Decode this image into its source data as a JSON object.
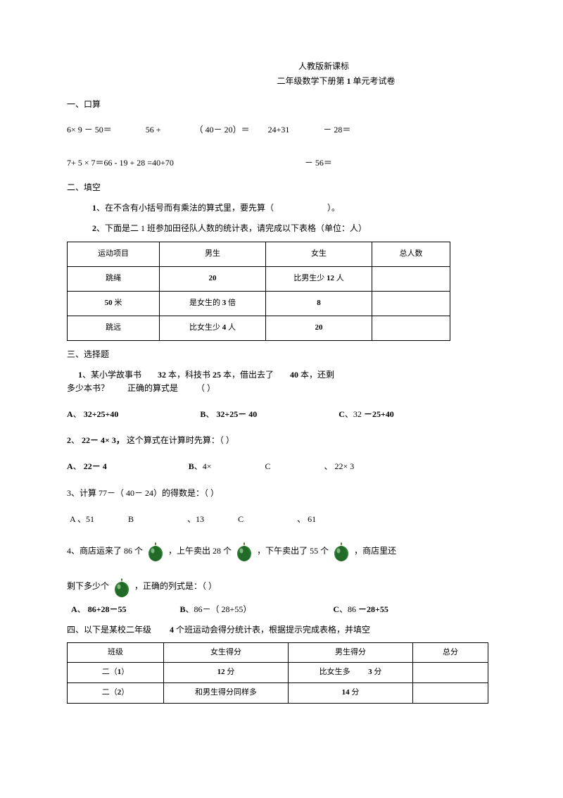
{
  "header": {
    "line1": "人教版新课标",
    "line2_a": "二年级数学下册第",
    "line2_b": "1",
    "line2_c": "单元考试卷"
  },
  "s1": {
    "head": "一、口算",
    "r1_a": "6× 9 － 50＝",
    "r1_b": "56 +",
    "r1_c": "（ 40－ 20）＝",
    "r1_d": "24+31",
    "r1_e": "－ 28＝",
    "r2_a": "7+ 5 × 7＝66 ‑ 19 + 28 =40+70",
    "r2_b": "－ 56＝"
  },
  "s2": {
    "head": "二、填空",
    "q1_a": "1",
    "q1_b": "、在不含有小括号而有乘法的算式里，要先算（",
    "q1_c": "）。",
    "q2_a": "2",
    "q2_b": "、下面是二",
    "q2_c": "1 班参加田径队人数的统计表，请完成以下表格（单位：人）",
    "table": {
      "h": [
        "运动项目",
        "男生",
        "女生",
        "总人数"
      ],
      "r1": {
        "c1": "跳绳",
        "c2": "20",
        "c3_a": "比男生少",
        "c3_b": "12",
        "c3_c": "人",
        "c4": ""
      },
      "r2": {
        "c1_a": "50",
        "c1_b": "米",
        "c2_a": "是女生的",
        "c2_b": "3",
        "c2_c": "倍",
        "c3": "8",
        "c4": ""
      },
      "r3": {
        "c1": "跳远",
        "c2_a": "比女生少",
        "c2_b": "4",
        "c2_c": "人",
        "c3": "20",
        "c4": ""
      }
    }
  },
  "s3": {
    "head": "三、选择题",
    "q1_a": "1",
    "q1_b": "、某小学故事书",
    "q1_c": "32",
    "q1_d": "本，科技书",
    "q1_e": "25",
    "q1_f": "本，借出去了",
    "q1_g": "40",
    "q1_h": "本，还剩",
    "q1_i": "多少本书？",
    "q1_j": "正确的算式是",
    "q1_k": "（  ）",
    "q1_opt_a1": "A",
    "q1_opt_a2": "、",
    "q1_opt_a3": "32+25+40",
    "q1_opt_b1": "B",
    "q1_opt_b2": "、",
    "q1_opt_b3": "32+25－ 40",
    "q1_opt_c1": "C",
    "q1_opt_c2": "、32",
    "q1_opt_c3": "－25+40",
    "q2_a": "2",
    "q2_b": "、",
    "q2_c": "22－ 4× 3，",
    "q2_d": "这个算式在计算时先算：（  ）",
    "q2_opt_a1": "A",
    "q2_opt_a2": "、",
    "q2_opt_a3": "22－ 4",
    "q2_opt_b1": "B",
    "q2_opt_b2": "、4×",
    "q2_opt_c1": "C",
    "q2_opt_c2": "、",
    "q2_opt_c3": "22× 3",
    "q3_a": "3、计算",
    "q3_b": "77－（ 40－ 24）的得数是：（  ）",
    "q3_opt_a1": "A",
    "q3_opt_a2": "、51",
    "q3_opt_b1": "B",
    "q3_opt_b2": "、13",
    "q3_opt_c1": "C",
    "q3_opt_c2": "、",
    "q3_opt_c3": "61",
    "q4_a": "4、商店运来了",
    "q4_b": "86",
    "q4_c": "个",
    "q4_d": "，上午卖出",
    "q4_e": "28",
    "q4_f": "个",
    "q4_g": "，下午卖出了",
    "q4_h": "55",
    "q4_i": "个",
    "q4_j": "，商店里还",
    "q4_k": "剩下多少个",
    "q4_l": "，正确的列式是：（  ）",
    "q4_opt_a1": "A",
    "q4_opt_a2": "、",
    "q4_opt_a3": "86+28－55",
    "q4_opt_b1": "B",
    "q4_opt_b2": "、86－（ 28+55）",
    "q4_opt_c1": "C",
    "q4_opt_c2": "、86",
    "q4_opt_c3": "－28+55"
  },
  "s4": {
    "head_a": "四、以下是某校二年级",
    "head_b": "4",
    "head_c": "个班运动会得分统计表，根据提示完成表格，并填空",
    "table": {
      "h": [
        "班级",
        "女生得分",
        "男生得分",
        "总分"
      ],
      "r1": {
        "c1_a": "二（",
        "c1_b": "1",
        "c1_c": "）",
        "c2_a": "12",
        "c2_b": "分",
        "c3_a": "比女生多",
        "c3_b": "3",
        "c3_c": "分",
        "c4": ""
      },
      "r2": {
        "c1_a": "二（",
        "c1_b": "2",
        "c1_c": "）",
        "c2": "和男生得分同样多",
        "c3_a": "14",
        "c3_b": "分",
        "c4": ""
      }
    }
  },
  "melon": {
    "body_fill": "#2e7d32",
    "stripe_fill": "#1b5e20",
    "highlight_fill": "#a5d6a7",
    "stem_fill": "#3e6b1f"
  }
}
